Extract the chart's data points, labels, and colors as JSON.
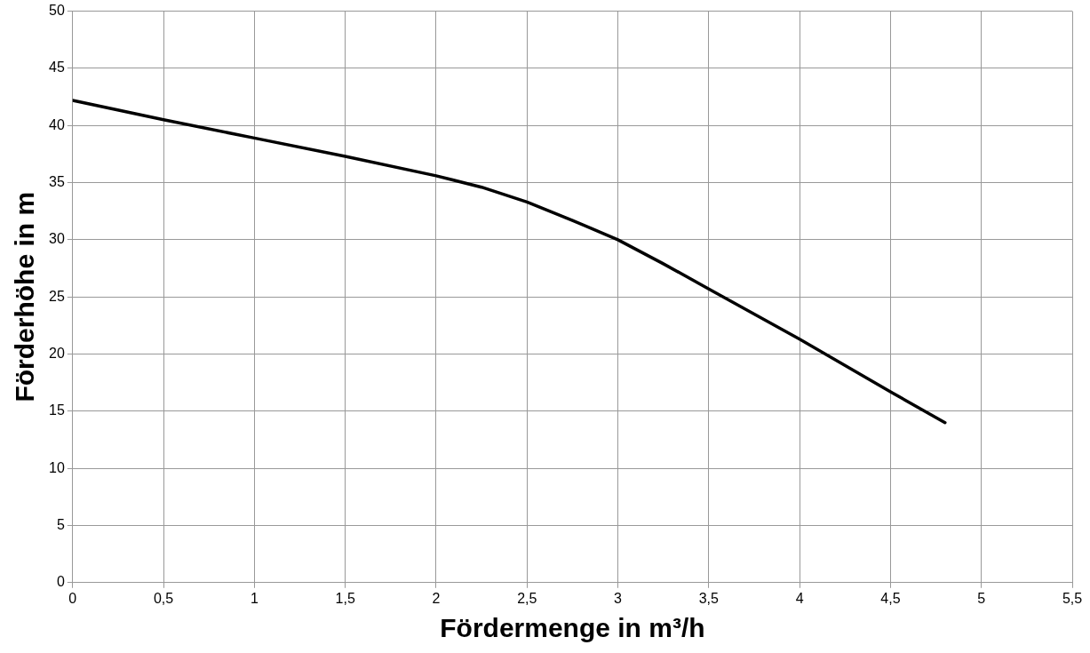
{
  "chart_data": {
    "type": "line",
    "xlabel": "Fördermenge in m³/h",
    "ylabel": "Förderhöhe in m",
    "x": [
      0,
      0.5,
      1,
      1.5,
      2,
      2.25,
      2.5,
      2.75,
      3,
      3.25,
      3.5,
      4,
      4.5,
      4.8
    ],
    "series": [
      {
        "color": "#000000",
        "values": [
          42.2,
          40.5,
          38.9,
          37.3,
          35.6,
          34.6,
          33.3,
          31.7,
          30.0,
          27.9,
          25.7,
          21.3,
          16.7,
          14.0
        ]
      }
    ],
    "xlim": [
      0,
      5.5
    ],
    "xticks": [
      0,
      {
        "value": 0.5,
        "label": "0,5"
      },
      1,
      {
        "value": 1.5,
        "label": "1,5"
      },
      2,
      {
        "value": 2.5,
        "label": "2,5"
      },
      3,
      {
        "value": 3.5,
        "label": "3,5"
      },
      4,
      {
        "value": 4.5,
        "label": "4,5"
      },
      5,
      {
        "value": 5.5,
        "label": "5,5"
      }
    ],
    "ylim": [
      0,
      50
    ],
    "yticks": [
      0,
      5,
      10,
      15,
      20,
      25,
      30,
      35,
      40,
      45,
      50
    ],
    "grid": true,
    "legend": false,
    "marker": "none",
    "line_style": "solid"
  }
}
